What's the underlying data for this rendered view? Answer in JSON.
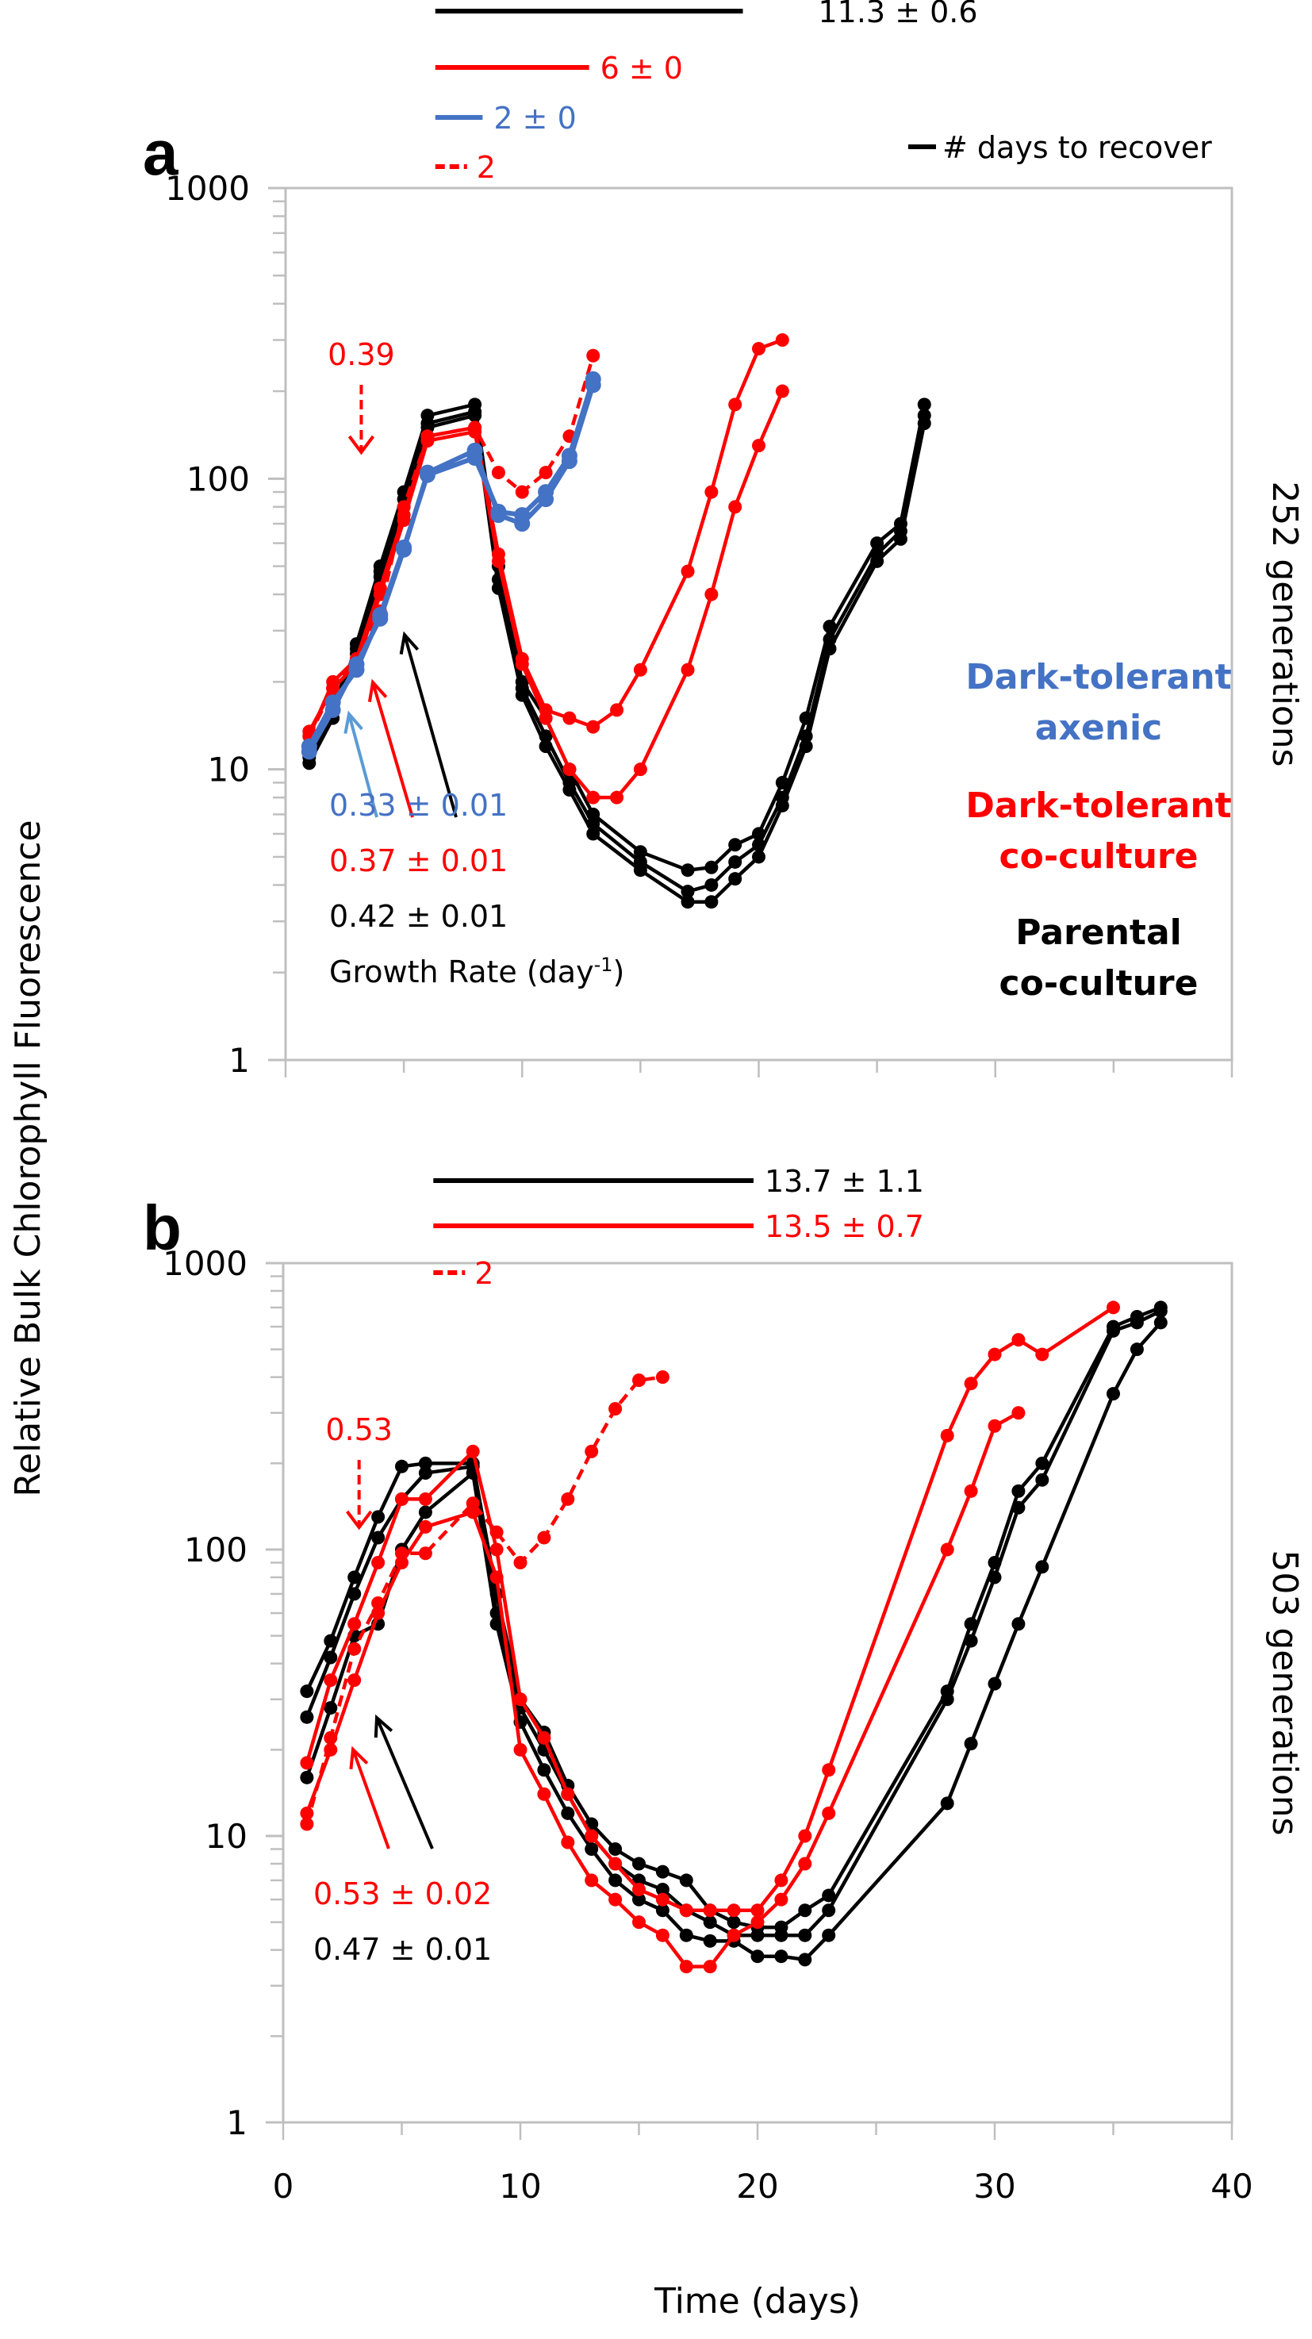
{
  "colors": {
    "black": "#000000",
    "red": "#ff0000",
    "blue": "#4472c4",
    "lightblue": "#5b9bd5",
    "axis": "#bfbfbf"
  },
  "chart_data": [
    {
      "panel": "a",
      "type": "line",
      "ylabel": "Relative Bulk Chlorophyll Fluorescence",
      "xlabel": "Time (days)",
      "yscale": "log",
      "ylim": [
        1,
        1000
      ],
      "xlim": [
        0,
        40
      ],
      "yticks": [
        "1",
        "10",
        "100",
        "1000"
      ],
      "xticks": [],
      "side_label": "252 generations",
      "recovery_bars": [
        {
          "label": "11.3 ± 0.6",
          "color": "black",
          "style": "solid",
          "x0": 7,
          "x1": 20
        },
        {
          "label": "6 ± 0",
          "color": "red",
          "style": "solid",
          "x0": 7,
          "x1": 13.5
        },
        {
          "label": "2 ± 0",
          "color": "blue",
          "style": "solid",
          "x0": 7,
          "x1": 9
        },
        {
          "label": "2",
          "color": "red",
          "style": "dashed",
          "x0": 7,
          "x1": 9
        }
      ],
      "recovery_legend": "# days to recover",
      "annotations": [
        {
          "text": "0.39",
          "color": "red",
          "x": 3.2,
          "arrow": "dashed-down"
        },
        {
          "text": "0.33 ± 0.01",
          "color": "blue"
        },
        {
          "text": "0.37 ± 0.01",
          "color": "red"
        },
        {
          "text": "0.42 ± 0.01",
          "color": "black"
        },
        {
          "text": "Growth Rate (day",
          "sup": "-1",
          "close": ")",
          "color": "black"
        }
      ],
      "legend": [
        {
          "lines": [
            "Dark-tolerant",
            "axenic"
          ],
          "color": "blue"
        },
        {
          "lines": [
            "Dark-tolerant",
            "co-culture"
          ],
          "color": "red"
        },
        {
          "lines": [
            "Parental",
            "co-culture"
          ],
          "color": "black"
        }
      ],
      "series": [
        {
          "name": "Parental co-culture 1",
          "color": "black",
          "dash": false,
          "x": [
            1,
            2,
            3,
            4,
            5,
            6,
            8,
            9,
            10,
            11,
            12,
            13,
            15,
            17,
            18,
            19,
            20,
            21,
            22,
            23,
            25,
            26,
            27
          ],
          "y": [
            10.5,
            15,
            27,
            50,
            90,
            165,
            180,
            50,
            20,
            15,
            10,
            7,
            5.2,
            4.5,
            4.6,
            5.5,
            6.0,
            9,
            15,
            31,
            60,
            70,
            180
          ]
        },
        {
          "name": "Parental co-culture 2",
          "color": "black",
          "dash": false,
          "x": [
            1,
            2,
            3,
            4,
            5,
            6,
            8,
            9,
            10,
            11,
            12,
            13,
            15,
            17,
            18,
            19,
            20,
            21,
            22,
            23,
            25,
            26,
            27
          ],
          "y": [
            11,
            16,
            26,
            48,
            85,
            155,
            170,
            45,
            19,
            13,
            9,
            6.5,
            4.8,
            3.8,
            4.0,
            4.8,
            5.5,
            8,
            13,
            28,
            55,
            66,
            165
          ]
        },
        {
          "name": "Parental co-culture 3",
          "color": "black",
          "dash": false,
          "x": [
            1,
            2,
            3,
            4,
            5,
            6,
            8,
            9,
            10,
            11,
            12,
            13,
            15,
            17,
            18,
            19,
            20,
            21,
            22,
            23,
            25,
            26,
            27
          ],
          "y": [
            11.5,
            17,
            25,
            46,
            80,
            150,
            165,
            42,
            18,
            12,
            8.5,
            6,
            4.5,
            3.5,
            3.5,
            4.2,
            5.0,
            7.5,
            12,
            26,
            52,
            62,
            155
          ]
        },
        {
          "name": "Dark-tolerant co-culture 1",
          "color": "red",
          "dash": false,
          "x": [
            1,
            2,
            3,
            4,
            5,
            6,
            8,
            9,
            10,
            11,
            12,
            13,
            14,
            15,
            17,
            18,
            19,
            20,
            21
          ],
          "y": [
            13,
            20,
            24,
            42,
            75,
            140,
            150,
            55,
            24,
            16,
            15,
            14,
            16,
            22,
            48,
            90,
            180,
            280,
            300
          ]
        },
        {
          "name": "Dark-tolerant co-culture 2",
          "color": "red",
          "dash": false,
          "x": [
            1,
            2,
            3,
            4,
            5,
            6,
            8,
            9,
            10,
            11,
            12,
            13,
            14,
            15,
            17,
            18,
            19,
            20,
            21
          ],
          "y": [
            13.5,
            19,
            23,
            40,
            72,
            135,
            145,
            52,
            23,
            15,
            10,
            8,
            8,
            10,
            22,
            40,
            80,
            130,
            200
          ]
        },
        {
          "name": "Dark-tolerant co-culture dashed",
          "color": "red",
          "dash": true,
          "x": [
            1,
            2,
            3,
            4,
            5,
            6,
            8,
            9,
            10,
            11,
            12,
            13
          ],
          "y": [
            13,
            19,
            24,
            35,
            80,
            140,
            150,
            105,
            90,
            105,
            140,
            265
          ]
        },
        {
          "name": "Dark-tolerant axenic 1",
          "color": "blue",
          "dash": false,
          "x": [
            1,
            2,
            3,
            4,
            5,
            6,
            8,
            9,
            10,
            11,
            12,
            13
          ],
          "y": [
            12,
            17,
            22,
            34,
            58,
            103,
            118,
            77,
            75,
            90,
            120,
            220
          ]
        },
        {
          "name": "Dark-tolerant axenic 2",
          "color": "blue",
          "dash": false,
          "x": [
            1,
            2,
            3,
            4,
            5,
            6,
            8,
            9,
            10,
            11,
            12,
            13
          ],
          "y": [
            11.5,
            16,
            23,
            33,
            57,
            105,
            125,
            75,
            70,
            85,
            115,
            210
          ]
        }
      ]
    },
    {
      "panel": "b",
      "type": "line",
      "ylabel": "Relative Bulk Chlorophyll Fluorescence",
      "xlabel": "Time (days)",
      "yscale": "log",
      "ylim": [
        1,
        1000
      ],
      "xlim": [
        0,
        40
      ],
      "yticks": [
        "1",
        "10",
        "100",
        "1000"
      ],
      "xticks": [
        "0",
        "10",
        "20",
        "30",
        "40"
      ],
      "side_label": "503 generations",
      "recovery_bars": [
        {
          "label": "13.7 ± 1.1",
          "color": "black",
          "style": "solid",
          "x0": 7,
          "x1": 20.5
        },
        {
          "label": "13.5 ± 0.7",
          "color": "red",
          "style": "solid",
          "x0": 7,
          "x1": 20.5
        },
        {
          "label": "2",
          "color": "red",
          "style": "dashed",
          "x0": 7,
          "x1": 9
        }
      ],
      "annotations": [
        {
          "text": "0.53",
          "color": "red",
          "x": 3.2,
          "arrow": "dashed-down"
        },
        {
          "text": "0.53 ± 0.02",
          "color": "red"
        },
        {
          "text": "0.47 ± 0.01",
          "color": "black"
        }
      ],
      "series": [
        {
          "name": "Parental co-culture 1",
          "color": "black",
          "dash": false,
          "x": [
            1,
            2,
            3,
            4,
            5,
            6,
            8,
            9,
            10,
            11,
            12,
            13,
            14,
            15,
            16,
            17,
            18,
            19,
            20,
            21,
            22,
            23,
            28,
            29,
            30,
            31,
            32,
            35,
            36,
            37
          ],
          "y": [
            32,
            48,
            80,
            130,
            195,
            200,
            200,
            70,
            30,
            23,
            15,
            11,
            9,
            8,
            7.5,
            7,
            5.5,
            5,
            4.8,
            4.8,
            5.5,
            6.2,
            32,
            55,
            90,
            160,
            200,
            600,
            650,
            700
          ]
        },
        {
          "name": "Parental co-culture 2",
          "color": "black",
          "dash": false,
          "x": [
            1,
            2,
            3,
            4,
            5,
            6,
            8,
            9,
            10,
            11,
            12,
            13,
            14,
            15,
            16,
            17,
            18,
            19,
            20,
            21,
            22,
            23,
            28,
            29,
            30,
            31,
            32,
            35,
            36,
            37
          ],
          "y": [
            26,
            42,
            70,
            110,
            150,
            185,
            195,
            60,
            28,
            20,
            14,
            10,
            8,
            7,
            6.5,
            5.5,
            5,
            4.5,
            4.5,
            4.5,
            4.5,
            5.5,
            30,
            48,
            80,
            140,
            175,
            580,
            620,
            680
          ]
        },
        {
          "name": "Parental co-culture 3",
          "color": "black",
          "dash": false,
          "x": [
            1,
            2,
            3,
            4,
            5,
            6,
            8,
            9,
            10,
            11,
            12,
            13,
            14,
            15,
            16,
            17,
            18,
            19,
            20,
            21,
            22,
            23,
            28,
            29,
            30,
            31,
            32,
            35,
            36,
            37
          ],
          "y": [
            16,
            28,
            50,
            55,
            100,
            135,
            185,
            55,
            25,
            17,
            12,
            9,
            7,
            6,
            5.5,
            4.5,
            4.3,
            4.3,
            3.8,
            3.8,
            3.7,
            4.5,
            13,
            21,
            34,
            55,
            87,
            350,
            500,
            620
          ]
        },
        {
          "name": "Dark-tolerant co-culture 1",
          "color": "red",
          "dash": false,
          "x": [
            1,
            2,
            3,
            4,
            5,
            6,
            8,
            9,
            10,
            11,
            12,
            13,
            14,
            15,
            16,
            17,
            18,
            19,
            20,
            21,
            22,
            23,
            28,
            29,
            30,
            31,
            32,
            35
          ],
          "y": [
            18,
            35,
            55,
            90,
            150,
            150,
            220,
            100,
            30,
            22,
            14,
            10,
            8,
            6.5,
            6,
            5.5,
            5.5,
            5.5,
            5.5,
            7,
            10,
            17,
            250,
            380,
            480,
            540,
            480,
            700
          ]
        },
        {
          "name": "Dark-tolerant co-culture 2",
          "color": "red",
          "dash": false,
          "x": [
            1,
            2,
            3,
            4,
            5,
            6,
            8,
            9,
            10,
            11,
            12,
            13,
            14,
            15,
            16,
            17,
            18,
            19,
            20,
            21,
            22,
            23,
            28,
            29,
            30,
            31
          ],
          "y": [
            12,
            20,
            35,
            60,
            90,
            120,
            135,
            80,
            20,
            14,
            9.5,
            7,
            6,
            5,
            4.5,
            3.5,
            3.5,
            4.5,
            5,
            6,
            8,
            12,
            100,
            160,
            270,
            300
          ]
        },
        {
          "name": "Dark-tolerant co-culture dashed",
          "color": "red",
          "dash": true,
          "x": [
            1,
            2,
            3,
            4,
            5,
            6,
            8,
            9,
            10,
            11,
            12,
            13,
            14,
            15,
            16
          ],
          "y": [
            11,
            22,
            45,
            65,
            97,
            97,
            145,
            115,
            90,
            110,
            150,
            220,
            310,
            390,
            400
          ]
        }
      ]
    }
  ]
}
